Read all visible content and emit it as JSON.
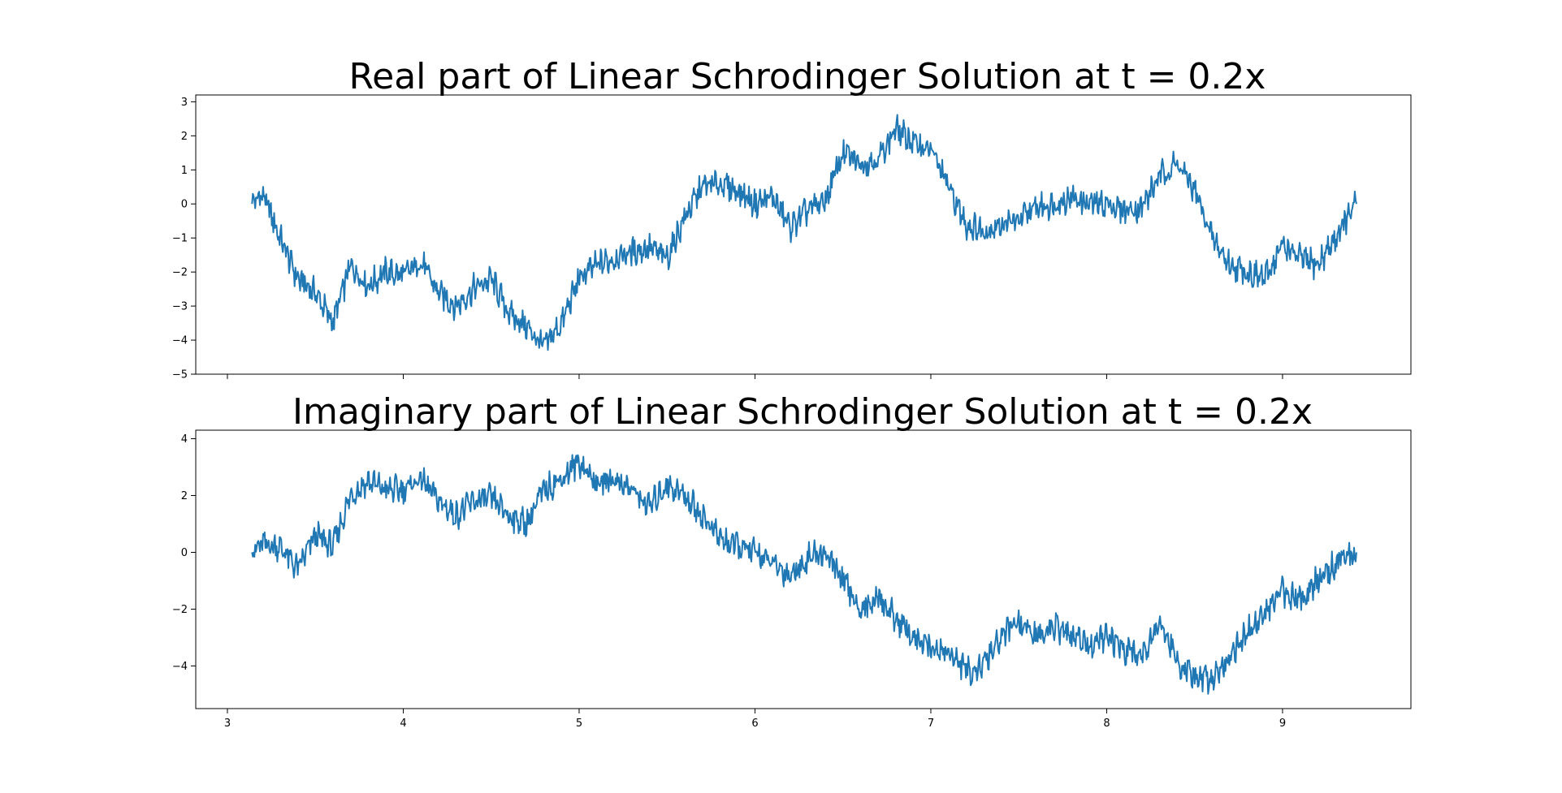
{
  "chart_data": [
    {
      "type": "line",
      "title": "Real part of Linear Schrodinger Solution at t = 0.2x",
      "xlabel": "",
      "ylabel": "",
      "xlim": [
        2.82,
        9.73
      ],
      "ylim": [
        -5.0,
        3.2
      ],
      "xticks": [
        3,
        4,
        5,
        6,
        7,
        8,
        9
      ],
      "xtick_labels_visible": false,
      "yticks": [
        3,
        2,
        1,
        0,
        -1,
        -2,
        -3,
        -4,
        -5
      ],
      "ytick_labels": [
        "3",
        "2",
        "1",
        "0",
        "−1",
        "−2",
        "−3",
        "−4",
        "−5"
      ],
      "grid": false,
      "series": [
        {
          "color": "#1f77b4",
          "x": [
            3.14,
            3.2,
            3.3,
            3.4,
            3.5,
            3.6,
            3.7,
            3.8,
            3.9,
            4.0,
            4.1,
            4.2,
            4.3,
            4.4,
            4.5,
            4.6,
            4.7,
            4.8,
            4.9,
            5.0,
            5.1,
            5.2,
            5.3,
            5.4,
            5.5,
            5.6,
            5.7,
            5.8,
            5.9,
            6.0,
            6.1,
            6.2,
            6.3,
            6.4,
            6.5,
            6.6,
            6.7,
            6.8,
            6.9,
            7.0,
            7.1,
            7.2,
            7.3,
            7.4,
            7.5,
            7.6,
            7.7,
            7.8,
            7.9,
            8.0,
            8.1,
            8.2,
            8.3,
            8.4,
            8.5,
            8.6,
            8.7,
            8.8,
            8.9,
            9.0,
            9.1,
            9.2,
            9.3,
            9.42
          ],
          "values": [
            0.0,
            0.3,
            -1.0,
            -2.2,
            -2.6,
            -3.5,
            -1.8,
            -2.4,
            -2.0,
            -2.1,
            -1.7,
            -2.6,
            -3.0,
            -2.5,
            -2.2,
            -3.2,
            -3.6,
            -4.2,
            -3.5,
            -2.2,
            -1.8,
            -1.6,
            -1.4,
            -1.3,
            -1.6,
            -0.4,
            0.5,
            0.6,
            0.4,
            0.0,
            0.2,
            -0.7,
            -0.2,
            0.1,
            1.5,
            1.2,
            1.3,
            2.2,
            1.8,
            1.6,
            0.5,
            -0.6,
            -0.8,
            -0.6,
            -0.5,
            -0.1,
            0.0,
            0.2,
            0.0,
            0.0,
            -0.2,
            -0.1,
            0.8,
            1.2,
            0.4,
            -1.0,
            -1.8,
            -2.0,
            -2.2,
            -1.2,
            -1.6,
            -1.8,
            -1.0,
            0.0
          ]
        }
      ]
    },
    {
      "type": "line",
      "title": "Imaginary part of Linear Schrodinger Solution at t = 0.2x",
      "xlabel": "",
      "ylabel": "",
      "xlim": [
        2.82,
        9.73
      ],
      "ylim": [
        -5.5,
        4.3
      ],
      "xticks": [
        3,
        4,
        5,
        6,
        7,
        8,
        9
      ],
      "xtick_labels": [
        "3",
        "4",
        "5",
        "6",
        "7",
        "8",
        "9"
      ],
      "yticks": [
        4,
        2,
        0,
        -2,
        -4
      ],
      "ytick_labels": [
        "4",
        "2",
        "0",
        "−2",
        "−4"
      ],
      "grid": false,
      "series": [
        {
          "color": "#1f77b4",
          "x": [
            3.14,
            3.2,
            3.3,
            3.4,
            3.5,
            3.6,
            3.7,
            3.8,
            3.9,
            4.0,
            4.1,
            4.2,
            4.3,
            4.4,
            4.5,
            4.6,
            4.7,
            4.8,
            4.9,
            5.0,
            5.1,
            5.2,
            5.3,
            5.4,
            5.5,
            5.6,
            5.7,
            5.8,
            5.9,
            6.0,
            6.1,
            6.2,
            6.3,
            6.4,
            6.5,
            6.6,
            6.7,
            6.8,
            6.9,
            7.0,
            7.1,
            7.2,
            7.3,
            7.4,
            7.5,
            7.6,
            7.7,
            7.8,
            7.9,
            8.0,
            8.1,
            8.2,
            8.3,
            8.4,
            8.5,
            8.6,
            8.7,
            8.8,
            8.9,
            9.0,
            9.1,
            9.2,
            9.3,
            9.42
          ],
          "values": [
            0.0,
            0.3,
            0.2,
            -0.6,
            0.6,
            0.2,
            2.0,
            2.5,
            2.2,
            2.2,
            2.6,
            1.8,
            1.3,
            1.8,
            1.9,
            1.3,
            1.0,
            2.2,
            2.6,
            3.2,
            2.4,
            2.6,
            2.2,
            1.6,
            2.4,
            2.0,
            1.3,
            0.5,
            0.2,
            0.0,
            -0.4,
            -0.8,
            -0.2,
            0.0,
            -1.0,
            -2.0,
            -1.6,
            -2.3,
            -3.0,
            -3.4,
            -3.5,
            -4.2,
            -4.0,
            -3.0,
            -2.4,
            -3.0,
            -2.6,
            -3.0,
            -3.2,
            -3.0,
            -3.4,
            -3.6,
            -2.4,
            -3.8,
            -4.5,
            -4.4,
            -3.6,
            -2.8,
            -2.2,
            -1.4,
            -1.6,
            -1.0,
            -0.4,
            0.0
          ]
        }
      ]
    }
  ]
}
